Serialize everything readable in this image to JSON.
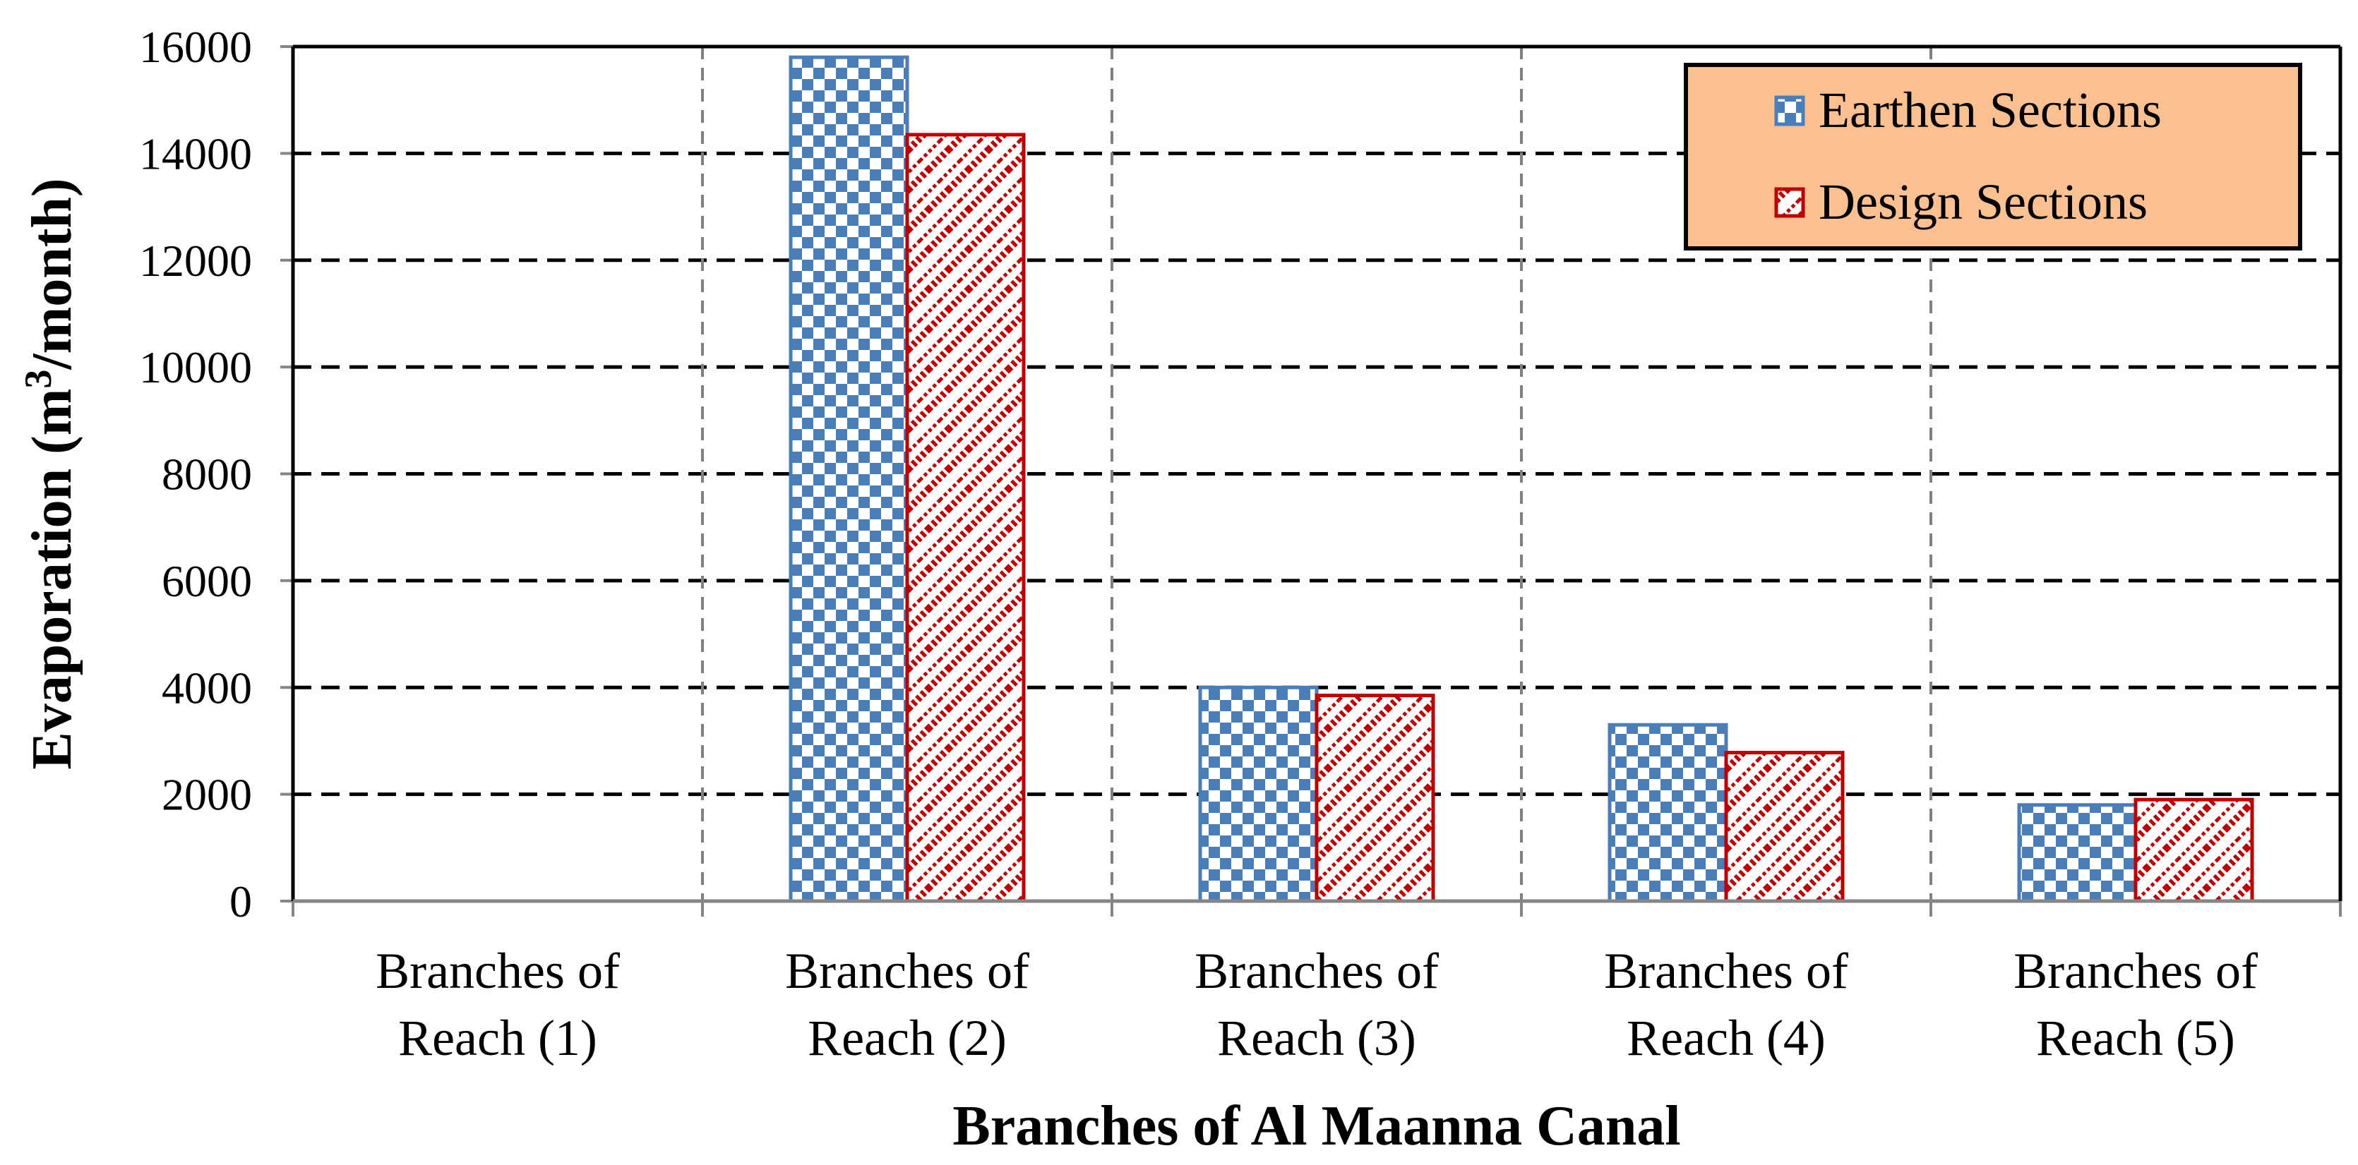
{
  "chart_data": {
    "type": "bar",
    "title": "",
    "xlabel": "Branches of Al Maanna Canal",
    "ylabel": {
      "prefix": "Evaporation (m",
      "superscript": "3",
      "suffix": "/month)"
    },
    "categories": [
      [
        "Branches of",
        "Reach (1)"
      ],
      [
        "Branches of",
        "Reach (2)"
      ],
      [
        "Branches of",
        "Reach (3)"
      ],
      [
        "Branches of",
        "Reach (4)"
      ],
      [
        "Branches of",
        "Reach (5)"
      ]
    ],
    "series": [
      {
        "name": "Earthen Sections",
        "values": [
          0,
          15800,
          4000,
          3300,
          1800
        ],
        "color": "#4a7ebb"
      },
      {
        "name": "Design Sections",
        "values": [
          0,
          14350,
          3850,
          2780,
          1900
        ],
        "color": "#c00000"
      }
    ],
    "ylim": [
      0,
      16000
    ],
    "yticks": [
      0,
      2000,
      4000,
      6000,
      8000,
      10000,
      12000,
      14000,
      16000
    ],
    "grid": "horizontal dashed major gridlines; vertical dashed category separators",
    "legend_position": "top-right",
    "legend_background": "#fac090"
  }
}
